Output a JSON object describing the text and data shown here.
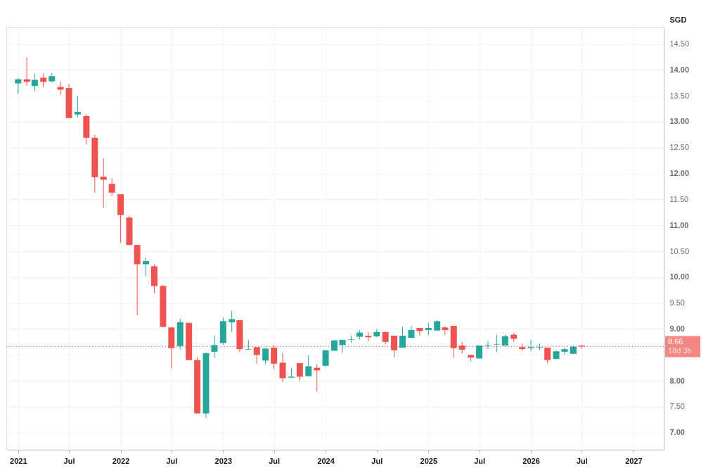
{
  "chart_data": {
    "type": "candlestick",
    "ylabel": "SGD",
    "x": [
      "2021-01",
      "2021-02",
      "2021-03",
      "2021-04",
      "2021-05",
      "2021-06",
      "2021-07",
      "2021-08",
      "2021-09",
      "2021-10",
      "2021-11",
      "2021-12",
      "2022-01",
      "2022-02",
      "2022-03",
      "2022-04",
      "2022-05",
      "2022-06",
      "2022-07",
      "2022-08",
      "2022-09",
      "2022-10",
      "2022-11",
      "2022-12",
      "2023-01",
      "2023-02",
      "2023-03",
      "2023-04",
      "2023-05",
      "2023-06",
      "2023-07",
      "2023-08",
      "2023-09",
      "2023-10",
      "2023-11",
      "2023-12",
      "2024-01",
      "2024-02",
      "2024-03",
      "2024-04",
      "2024-05",
      "2024-06",
      "2024-07",
      "2024-08",
      "2024-09",
      "2024-10",
      "2024-11",
      "2024-12",
      "2025-01",
      "2025-02",
      "2025-03",
      "2025-04",
      "2025-05",
      "2025-06",
      "2025-07",
      "2025-08",
      "2025-09",
      "2025-10",
      "2025-11",
      "2025-12",
      "2026-01",
      "2026-02",
      "2026-03",
      "2026-04",
      "2026-05",
      "2026-06",
      "2026-07"
    ],
    "ohlc": [
      [
        13.74,
        13.84,
        13.54,
        13.82
      ],
      [
        13.82,
        14.24,
        13.7,
        13.77
      ],
      [
        13.69,
        13.92,
        13.59,
        13.81
      ],
      [
        13.85,
        13.93,
        13.67,
        13.77
      ],
      [
        13.78,
        13.94,
        13.76,
        13.88
      ],
      [
        13.67,
        13.77,
        13.52,
        13.62
      ],
      [
        13.65,
        13.73,
        13.07,
        13.07
      ],
      [
        13.14,
        13.5,
        13.09,
        13.19
      ],
      [
        13.11,
        13.15,
        12.56,
        12.69
      ],
      [
        12.69,
        12.75,
        11.63,
        11.93
      ],
      [
        11.94,
        12.29,
        11.34,
        11.88
      ],
      [
        11.8,
        11.91,
        11.57,
        11.63
      ],
      [
        11.6,
        11.6,
        10.66,
        11.2
      ],
      [
        11.15,
        11.18,
        10.62,
        10.62
      ],
      [
        10.62,
        10.63,
        9.26,
        10.25
      ],
      [
        10.25,
        10.38,
        10.02,
        10.31
      ],
      [
        10.21,
        10.25,
        9.69,
        9.83
      ],
      [
        9.83,
        9.85,
        9.04,
        9.04
      ],
      [
        9.03,
        9.04,
        8.24,
        8.63
      ],
      [
        8.67,
        9.2,
        8.6,
        9.13
      ],
      [
        9.12,
        9.12,
        8.4,
        8.4
      ],
      [
        8.4,
        8.45,
        7.37,
        7.37
      ],
      [
        7.37,
        8.55,
        7.28,
        8.53
      ],
      [
        8.56,
        8.88,
        8.44,
        8.69
      ],
      [
        8.73,
        9.22,
        8.69,
        9.15
      ],
      [
        9.13,
        9.35,
        8.95,
        9.19
      ],
      [
        9.17,
        9.17,
        8.55,
        8.61
      ],
      [
        8.6,
        8.79,
        8.6,
        8.61
      ],
      [
        8.65,
        8.65,
        8.32,
        8.5
      ],
      [
        8.39,
        8.64,
        8.32,
        8.62
      ],
      [
        8.64,
        8.69,
        8.23,
        8.33
      ],
      [
        8.35,
        8.54,
        7.98,
        8.05
      ],
      [
        8.06,
        8.25,
        8.06,
        8.08
      ],
      [
        8.34,
        8.34,
        8.0,
        8.08
      ],
      [
        8.09,
        8.49,
        8.09,
        8.28
      ],
      [
        8.25,
        8.32,
        7.79,
        8.2
      ],
      [
        8.29,
        8.59,
        8.27,
        8.59
      ],
      [
        8.58,
        8.79,
        8.58,
        8.78
      ],
      [
        8.69,
        8.79,
        8.54,
        8.79
      ],
      [
        8.79,
        8.87,
        8.74,
        8.8
      ],
      [
        8.85,
        8.98,
        8.8,
        8.93
      ],
      [
        8.87,
        8.94,
        8.76,
        8.84
      ],
      [
        8.86,
        9.0,
        8.84,
        8.94
      ],
      [
        8.94,
        8.95,
        8.7,
        8.75
      ],
      [
        8.87,
        8.87,
        8.45,
        8.59
      ],
      [
        8.64,
        9.04,
        8.64,
        8.87
      ],
      [
        8.83,
        9.06,
        8.83,
        8.98
      ],
      [
        9.02,
        9.02,
        8.87,
        8.96
      ],
      [
        8.98,
        9.12,
        8.88,
        9.02
      ],
      [
        8.97,
        9.17,
        8.97,
        9.15
      ],
      [
        9.03,
        9.05,
        8.88,
        8.98
      ],
      [
        9.06,
        9.06,
        8.44,
        8.63
      ],
      [
        8.68,
        8.75,
        8.53,
        8.6
      ],
      [
        8.5,
        8.5,
        8.38,
        8.45
      ],
      [
        8.43,
        8.68,
        8.43,
        8.68
      ],
      [
        8.68,
        8.76,
        8.61,
        8.69
      ],
      [
        8.7,
        8.89,
        8.55,
        8.71
      ],
      [
        8.68,
        8.89,
        8.68,
        8.86
      ],
      [
        8.89,
        8.92,
        8.75,
        8.81
      ],
      [
        8.65,
        8.72,
        8.58,
        8.61
      ],
      [
        8.63,
        8.79,
        8.57,
        8.65
      ],
      [
        8.64,
        8.72,
        8.59,
        8.65
      ],
      [
        8.64,
        8.64,
        8.34,
        8.4
      ],
      [
        8.42,
        8.59,
        8.42,
        8.57
      ],
      [
        8.56,
        8.64,
        8.5,
        8.61
      ],
      [
        8.52,
        8.68,
        8.52,
        8.66
      ],
      [
        8.68,
        8.69,
        8.62,
        8.66
      ]
    ],
    "colors": [
      "#26a69a",
      "#ef5350",
      "#26a69a",
      "#ef5350",
      "#26a69a",
      "#ef5350",
      "#ef5350",
      "#26a69a",
      "#ef5350",
      "#ef5350",
      "#ef5350",
      "#ef5350",
      "#ef5350",
      "#ef5350",
      "#ef5350",
      "#26a69a",
      "#ef5350",
      "#ef5350",
      "#ef5350",
      "#26a69a",
      "#ef5350",
      "#ef5350",
      "#26a69a",
      "#26a69a",
      "#26a69a",
      "#26a69a",
      "#ef5350",
      "#26a69a",
      "#ef5350",
      "#26a69a",
      "#ef5350",
      "#ef5350",
      "#26a69a",
      "#ef5350",
      "#26a69a",
      "#ef5350",
      "#26a69a",
      "#26a69a",
      "#26a69a",
      "#26a69a",
      "#26a69a",
      "#ef5350",
      "#26a69a",
      "#ef5350",
      "#ef5350",
      "#26a69a",
      "#26a69a",
      "#ef5350",
      "#26a69a",
      "#26a69a",
      "#ef5350",
      "#ef5350",
      "#ef5350",
      "#ef5350",
      "#26a69a",
      "#26a69a",
      "#26a69a",
      "#26a69a",
      "#ef5350",
      "#ef5350",
      "#26a69a",
      "#26a69a",
      "#ef5350",
      "#26a69a",
      "#26a69a",
      "#26a69a",
      "#ef5350"
    ],
    "xlim": [
      "2020-11-20",
      "2027-04-19"
    ],
    "xticks": [
      {
        "value": "2021-01",
        "label": "2021"
      },
      {
        "value": "2021-07",
        "label": "Jul"
      },
      {
        "value": "2022-01",
        "label": "2022"
      },
      {
        "value": "2022-07",
        "label": "Jul"
      },
      {
        "value": "2023-01",
        "label": "2023"
      },
      {
        "value": "2023-07",
        "label": "Jul"
      },
      {
        "value": "2024-01",
        "label": "2024"
      },
      {
        "value": "2024-07",
        "label": "Jul"
      },
      {
        "value": "2025-01",
        "label": "2025"
      },
      {
        "value": "2025-07",
        "label": "Jul"
      },
      {
        "value": "2026-01",
        "label": "2026"
      },
      {
        "value": "2026-07",
        "label": "Jul"
      },
      {
        "value": "2027-01",
        "label": "2027"
      }
    ],
    "ylim": [
      6.67,
      14.82
    ],
    "yticks": [
      {
        "value": 7,
        "label": "7.00"
      },
      {
        "value": 7.5,
        "label": "7.50"
      },
      {
        "value": 8,
        "label": "8.00"
      },
      {
        "value": 8.5,
        "label": null
      },
      {
        "value": 9,
        "label": "9.00"
      },
      {
        "value": 9.5,
        "label": "9.50"
      },
      {
        "value": 10,
        "label": "10.00"
      },
      {
        "value": 10.5,
        "label": "10.50"
      },
      {
        "value": 11,
        "label": "11.00"
      },
      {
        "value": 11.5,
        "label": "11.50"
      },
      {
        "value": 12,
        "label": "12.00"
      },
      {
        "value": 12.5,
        "label": "12.50"
      },
      {
        "value": 13,
        "label": "13.00"
      },
      {
        "value": 13.5,
        "label": "13.50"
      },
      {
        "value": 14,
        "label": "14.00"
      },
      {
        "value": 14.5,
        "label": "14.50"
      }
    ],
    "grid": true,
    "ref_lines": [
      {
        "axis": "y",
        "value": 8.66,
        "label": "8.66",
        "color": "#ef5350",
        "line_style": "dotted"
      }
    ],
    "annotations": [
      "18d 3h"
    ]
  }
}
